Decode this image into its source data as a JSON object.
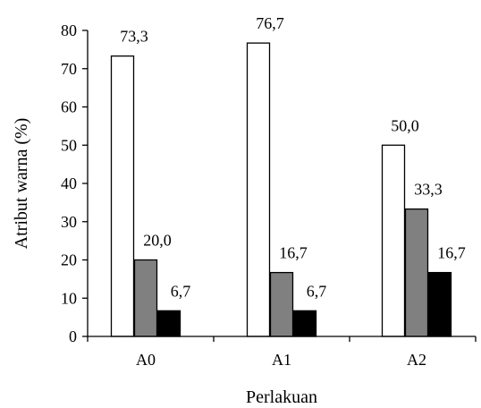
{
  "chart_data": {
    "type": "bar",
    "categories": [
      "A0",
      "A1",
      "A2"
    ],
    "series": [
      {
        "values": [
          73.3,
          76.7,
          50.0
        ],
        "color": "#ffffff"
      },
      {
        "values": [
          20.0,
          16.7,
          33.3
        ],
        "color": "#808080"
      },
      {
        "values": [
          6.7,
          6.7,
          16.7
        ],
        "color": "#000000"
      }
    ],
    "data_labels": [
      [
        "73,3",
        "76,7",
        "50,0"
      ],
      [
        "20,0",
        "16,7",
        "33,3"
      ],
      [
        "6,7",
        "6,7",
        "16,7"
      ]
    ],
    "xlabel": "Perlakuan",
    "ylabel": "Atribut  warna (%)",
    "ylim": [
      0,
      80
    ],
    "yticks": [
      "0",
      "10",
      "20",
      "30",
      "40",
      "50",
      "60",
      "70",
      "80"
    ],
    "grid": false,
    "legend": "none"
  }
}
